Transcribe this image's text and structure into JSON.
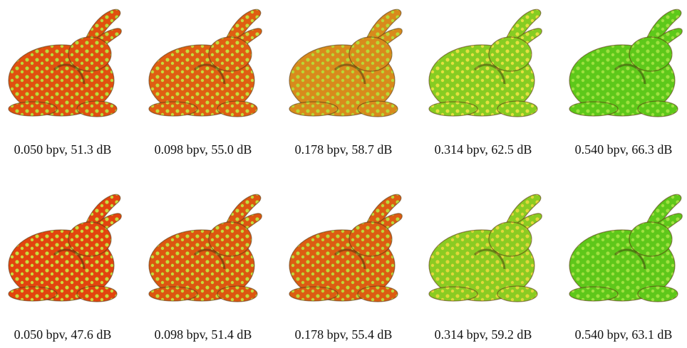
{
  "rows": [
    [
      "0.050 bpv, 51.3 dB",
      "0.098 bpv, 55.0 dB",
      "0.178 bpv, 58.7 dB",
      "0.314 bpv, 62.5 dB",
      "0.540 bpv, 66.3 dB"
    ],
    [
      "0.050 bpv, 47.6 dB",
      "0.098 bpv, 51.4 dB",
      "0.178 bpv, 55.4 dB",
      "0.314 bpv, 59.2 dB",
      "0.540 bpv, 63.1 dB"
    ]
  ]
}
